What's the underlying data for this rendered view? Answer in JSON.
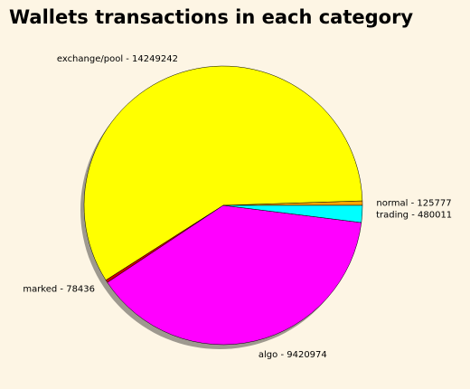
{
  "chart_data": {
    "type": "pie",
    "title": "Wallets transactions in each category",
    "slices": [
      {
        "label": "normal",
        "value": 125777,
        "color": "#ffa500",
        "text": "normal - 125777"
      },
      {
        "label": "exchange/pool",
        "value": 14249242,
        "color": "#ffff00",
        "text": "exchange/pool - 14249242"
      },
      {
        "label": "marked",
        "value": 78436,
        "color": "#cc0000",
        "text": "marked - 78436"
      },
      {
        "label": "algo",
        "value": 9420974,
        "color": "#ff00ff",
        "text": "algo - 9420974"
      },
      {
        "label": "trading",
        "value": 480011,
        "color": "#00ffff",
        "text": "trading - 480011"
      }
    ],
    "shadow": true,
    "edgecolor": "#000000",
    "background": "#fdf5e4"
  }
}
